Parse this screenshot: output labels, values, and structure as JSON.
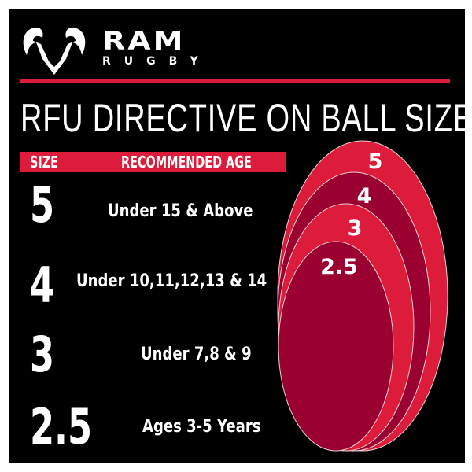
{
  "brand": {
    "name": "RAM",
    "sub": "RUGBY"
  },
  "title": "RFU DIRECTIVE ON BALL SIZES",
  "table": {
    "headers": [
      "SIZE",
      "RECOMMENDED AGE"
    ],
    "rows": [
      {
        "size": "5",
        "age": "Under 15 & Above"
      },
      {
        "size": "4",
        "age": "Under 10,11,12,13 & 14"
      },
      {
        "size": "3",
        "age": "Under 7,8 & 9"
      },
      {
        "size": "2.5",
        "age": "Ages 3-5 Years"
      }
    ]
  },
  "balls": [
    "5",
    "4",
    "3",
    "2.5"
  ],
  "colors": {
    "accent": "#dc1c3a",
    "dark": "#9a0030",
    "background": "#000000"
  }
}
